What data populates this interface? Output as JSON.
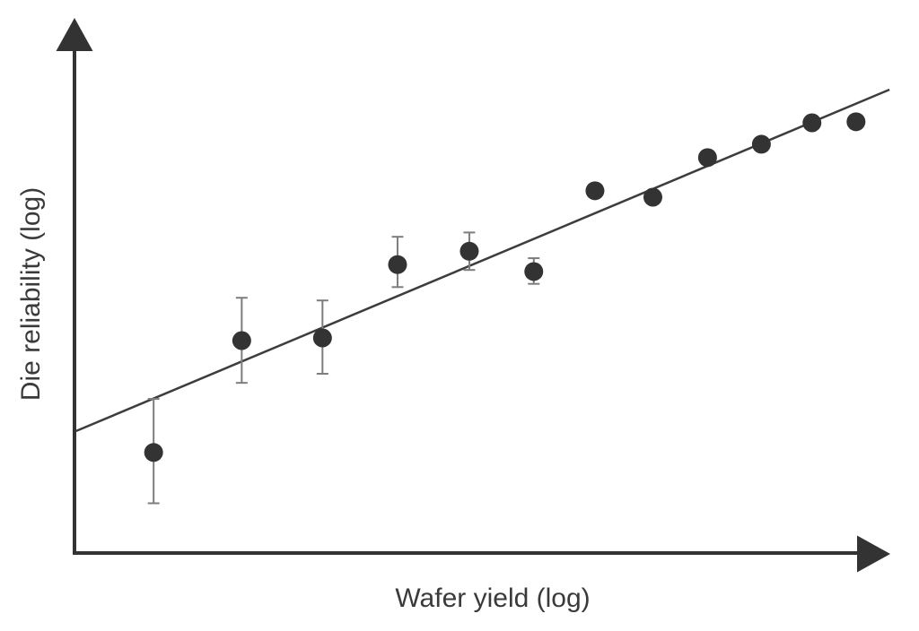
{
  "chart_data": {
    "type": "scatter",
    "xlabel": "Wafer yield (log)",
    "ylabel": "Die reliability (log)",
    "axes": "unlabeled conceptual log-log axes with arrowheads, no ticks, no gridlines",
    "xlim": [
      0,
      1
    ],
    "ylim": [
      0,
      1
    ],
    "points": [
      {
        "x": 0.097,
        "y": 0.188,
        "err_up": 0.1,
        "err_down": 0.095
      },
      {
        "x": 0.205,
        "y": 0.397,
        "err_up": 0.08,
        "err_down": 0.079
      },
      {
        "x": 0.304,
        "y": 0.402,
        "err_up": 0.07,
        "err_down": 0.067
      },
      {
        "x": 0.396,
        "y": 0.539,
        "err_up": 0.052,
        "err_down": 0.042
      },
      {
        "x": 0.484,
        "y": 0.564,
        "err_up": 0.035,
        "err_down": 0.035
      },
      {
        "x": 0.563,
        "y": 0.526,
        "err_up": 0.025,
        "err_down": 0.023
      },
      {
        "x": 0.638,
        "y": 0.677,
        "err_up": 0,
        "err_down": 0
      },
      {
        "x": 0.709,
        "y": 0.665,
        "err_up": 0,
        "err_down": 0
      },
      {
        "x": 0.776,
        "y": 0.739,
        "err_up": 0,
        "err_down": 0
      },
      {
        "x": 0.842,
        "y": 0.764,
        "err_up": 0,
        "err_down": 0
      },
      {
        "x": 0.904,
        "y": 0.804,
        "err_up": 0,
        "err_down": 0
      },
      {
        "x": 0.958,
        "y": 0.806,
        "err_up": 0,
        "err_down": 0
      }
    ],
    "trendline": {
      "x1": 0.002,
      "y1": 0.228,
      "x2": 0.999,
      "y2": 0.866
    },
    "legend": "none"
  },
  "colors": {
    "background": "#ffffff",
    "point": "#333333",
    "error_bar": "#7d7d7d",
    "axis": "#333333",
    "trend_line": "#3d3d3d",
    "label_text": "#3a3a3a"
  }
}
